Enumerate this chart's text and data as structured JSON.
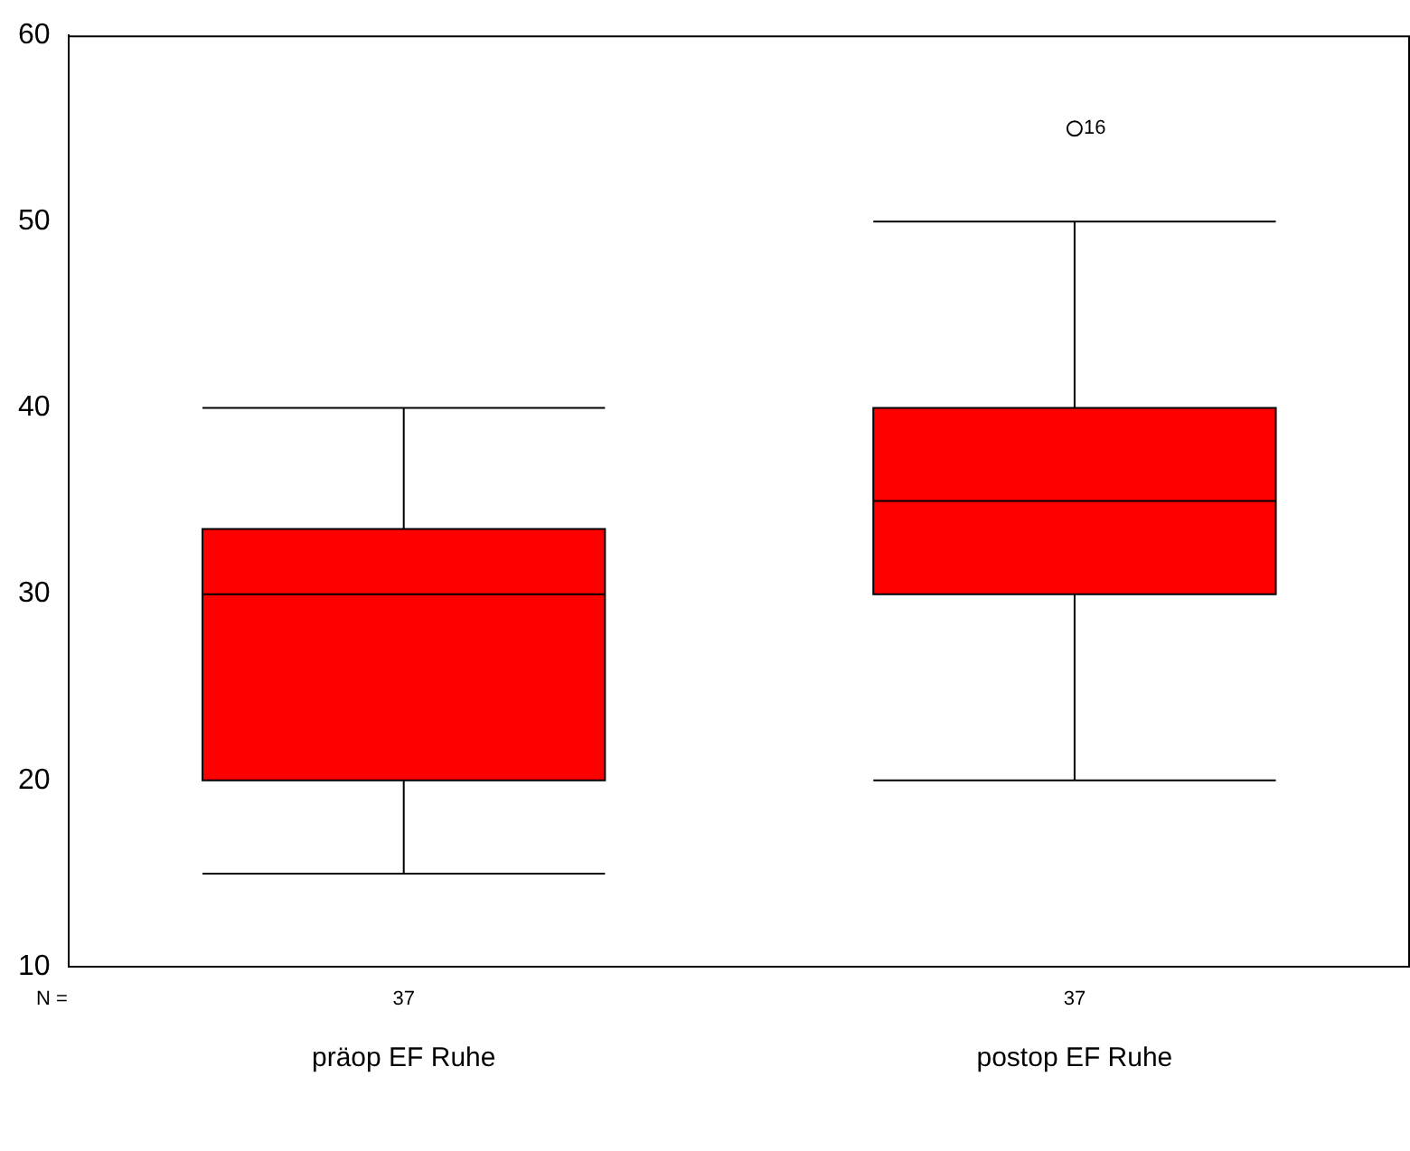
{
  "chart_data": {
    "type": "box",
    "categories": [
      "präop EF Ruhe",
      "postop EF Ruhe"
    ],
    "color": "#ff0000",
    "boxes": [
      {
        "low": 15,
        "q1": 20,
        "median": 30,
        "q3": 33.5,
        "high": 40
      },
      {
        "low": 20,
        "q1": 30,
        "median": 35,
        "q3": 40,
        "high": 50,
        "outliers": [
          55
        ]
      }
    ],
    "ylim": [
      10,
      60
    ],
    "yticks": [
      10,
      20,
      30,
      40,
      50,
      60
    ],
    "grid": false,
    "legend": false,
    "annotations": [
      "N =",
      "37",
      "37",
      "16"
    ]
  }
}
